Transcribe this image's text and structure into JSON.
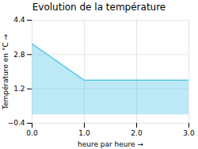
{
  "chart_data": {
    "type": "area",
    "title": "Evolution de la température",
    "xlabel": "heure par heure",
    "ylabel": "Température en °C",
    "x": [
      0,
      1,
      3
    ],
    "values": [
      3.3,
      1.6,
      1.6
    ],
    "color": "#5bc8e8",
    "xlim": [
      0,
      3
    ],
    "ylim": [
      -0.4,
      4.4
    ],
    "xticks": [
      0,
      1,
      2,
      3
    ],
    "yticks": [
      -0.4,
      1.2,
      2.8,
      4.4
    ],
    "grid": true
  }
}
